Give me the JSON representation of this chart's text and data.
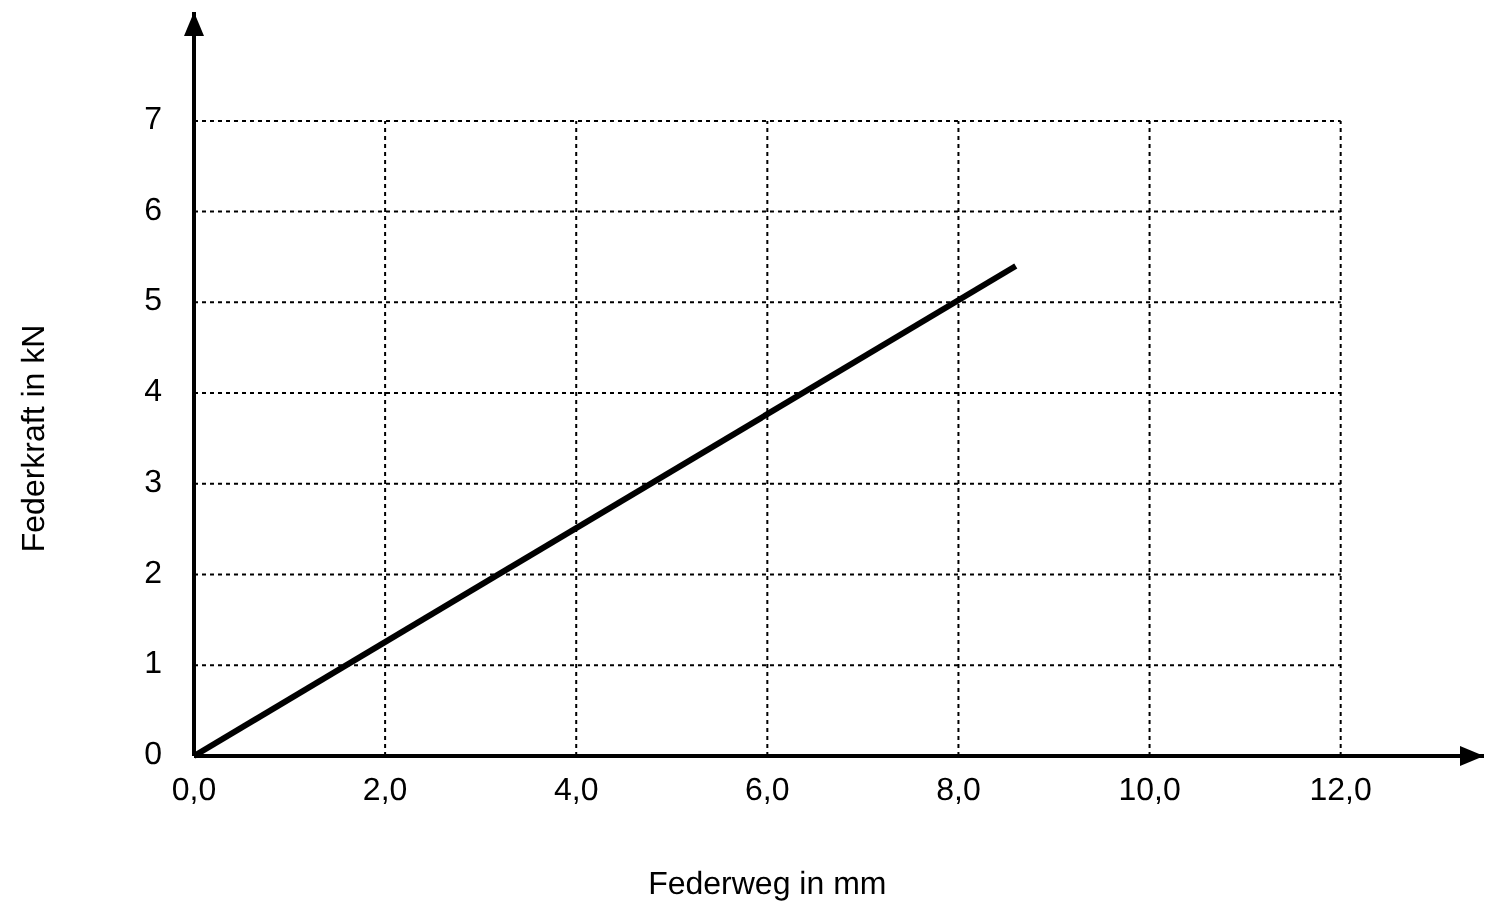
{
  "chart_data": {
    "type": "line",
    "xlabel": "Federweg in mm",
    "ylabel": "Federkraft in kN",
    "x": [
      0,
      8.6
    ],
    "series": [
      {
        "color": "#000000",
        "values": [
          0,
          5.4
        ]
      }
    ],
    "xlim": [
      0,
      13.5
    ],
    "ylim": [
      0,
      8.2
    ],
    "xticks": [
      {
        "value": 0,
        "label": "0,0"
      },
      {
        "value": 2,
        "label": "2,0"
      },
      {
        "value": 4,
        "label": "4,0"
      },
      {
        "value": 6,
        "label": "6,0"
      },
      {
        "value": 8,
        "label": "8,0"
      },
      {
        "value": 10,
        "label": "10,0"
      },
      {
        "value": 12,
        "label": "12,0"
      }
    ],
    "yticks": [
      0,
      1,
      2,
      3,
      4,
      5,
      6,
      7
    ],
    "grid": true,
    "marker": "none",
    "line_style": "solid"
  }
}
